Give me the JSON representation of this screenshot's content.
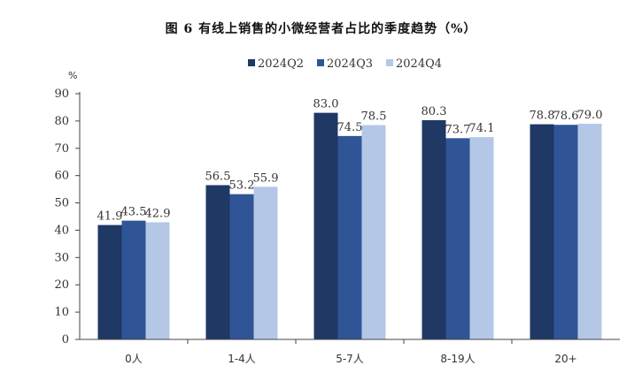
{
  "chart_data": {
    "type": "bar",
    "title": "图 6 有线上销售的小微经营者占比的季度趋势（%）",
    "ylabel": "%",
    "xlabel": "",
    "ylim": [
      0,
      90
    ],
    "yticks": [
      0,
      10,
      20,
      30,
      40,
      50,
      60,
      70,
      80,
      90
    ],
    "grid": false,
    "legend_position": "top",
    "categories": [
      "0人",
      "1-4人",
      "5-7人",
      "8-19人",
      "20+"
    ],
    "series": [
      {
        "name": "2024Q2",
        "color": "#1f3864",
        "values": [
          41.9,
          56.5,
          83.0,
          80.3,
          78.8
        ]
      },
      {
        "name": "2024Q3",
        "color": "#2f5597",
        "values": [
          43.5,
          53.2,
          74.5,
          73.7,
          78.6
        ]
      },
      {
        "name": "2024Q4",
        "color": "#b4c7e7",
        "values": [
          42.9,
          55.9,
          78.5,
          74.1,
          79.0
        ]
      }
    ],
    "data_labels": [
      [
        "41.9",
        "56.5",
        "83.0",
        "80.3",
        "78.8"
      ],
      [
        "43.5",
        "53.2",
        "74.5",
        "73.7",
        "78.6"
      ],
      [
        "42.9",
        "55.9",
        "78.5",
        "74.1",
        "79.0"
      ]
    ]
  }
}
